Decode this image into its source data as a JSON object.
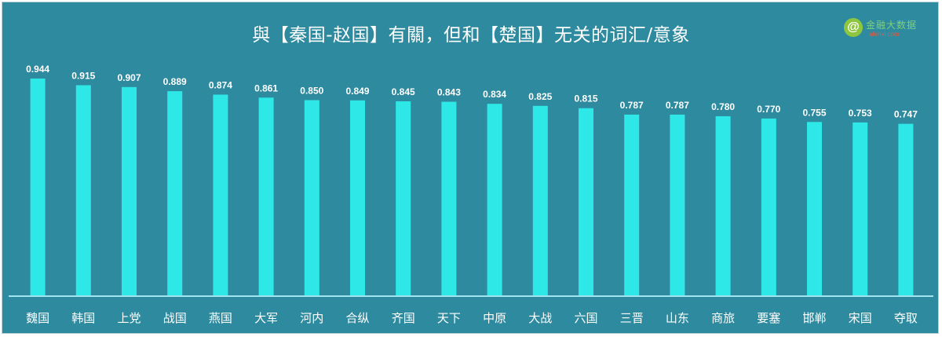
{
  "logo": {
    "mark": "@",
    "name": "金融大数据",
    "url": "afenxi.com"
  },
  "chart_data": {
    "type": "bar",
    "title": "與【秦国-赵国】有關，但和【楚国】无关的词汇/意象",
    "xlabel": "",
    "ylabel": "",
    "ylim": [
      0,
      0.944
    ],
    "grid": false,
    "legend": "none",
    "bar_color": "#2ee8e8",
    "background_color": "#2e8a9e",
    "categories": [
      "魏国",
      "韩国",
      "上党",
      "战国",
      "燕国",
      "大军",
      "河内",
      "合纵",
      "齐国",
      "天下",
      "中原",
      "大战",
      "六国",
      "三晋",
      "山东",
      "商旅",
      "要塞",
      "邯郸",
      "宋国",
      "夺取"
    ],
    "values": [
      0.944,
      0.915,
      0.907,
      0.889,
      0.874,
      0.861,
      0.85,
      0.849,
      0.845,
      0.843,
      0.834,
      0.825,
      0.815,
      0.787,
      0.787,
      0.78,
      0.77,
      0.755,
      0.753,
      0.747
    ],
    "value_labels": [
      "0.944",
      "0.915",
      "0.907",
      "0.889",
      "0.874",
      "0.861",
      "0.850",
      "0.849",
      "0.845",
      "0.843",
      "0.834",
      "0.825",
      "0.815",
      "0.787",
      "0.787",
      "0.780",
      "0.770",
      "0.755",
      "0.753",
      "0.747"
    ]
  }
}
